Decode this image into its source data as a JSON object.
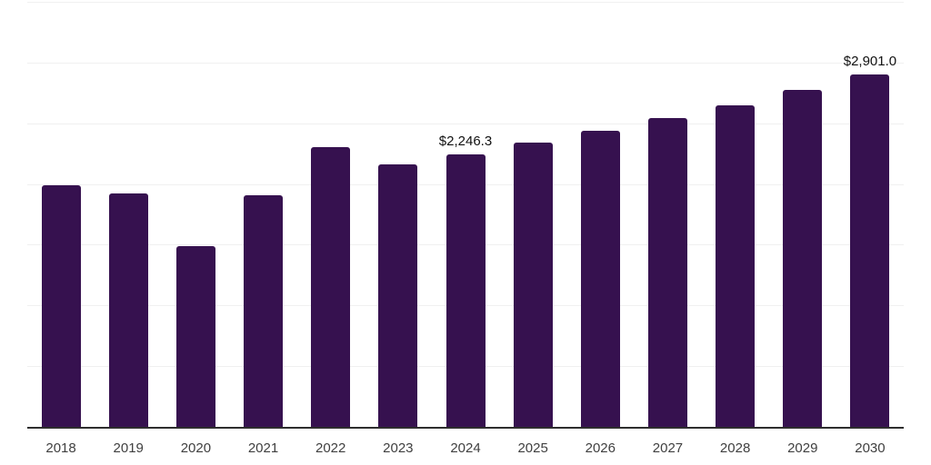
{
  "chart_data": {
    "type": "bar",
    "title": "",
    "xlabel": "",
    "ylabel": "",
    "categories": [
      "2018",
      "2019",
      "2020",
      "2021",
      "2022",
      "2023",
      "2024",
      "2025",
      "2026",
      "2027",
      "2028",
      "2029",
      "2030"
    ],
    "values": [
      1990,
      1920,
      1490,
      1905,
      2300,
      2165,
      2246.3,
      2340,
      2435,
      2540,
      2650,
      2775,
      2901
    ],
    "value_labels": {
      "2024": "$2,246.3",
      "2030": "$2,901.0"
    },
    "ylim": [
      0,
      3500
    ],
    "gridline_step": 500,
    "grid": "horizontal-only",
    "legend_position": "none",
    "y_axis_tick_labels_visible": false,
    "colors": {
      "bar": "#36114F",
      "gridline": "#f0f0f0",
      "axis_line": "#2e2e2e",
      "x_tick_label": "#3f3f3f",
      "data_label": "#111111",
      "background": "#ffffff"
    }
  }
}
